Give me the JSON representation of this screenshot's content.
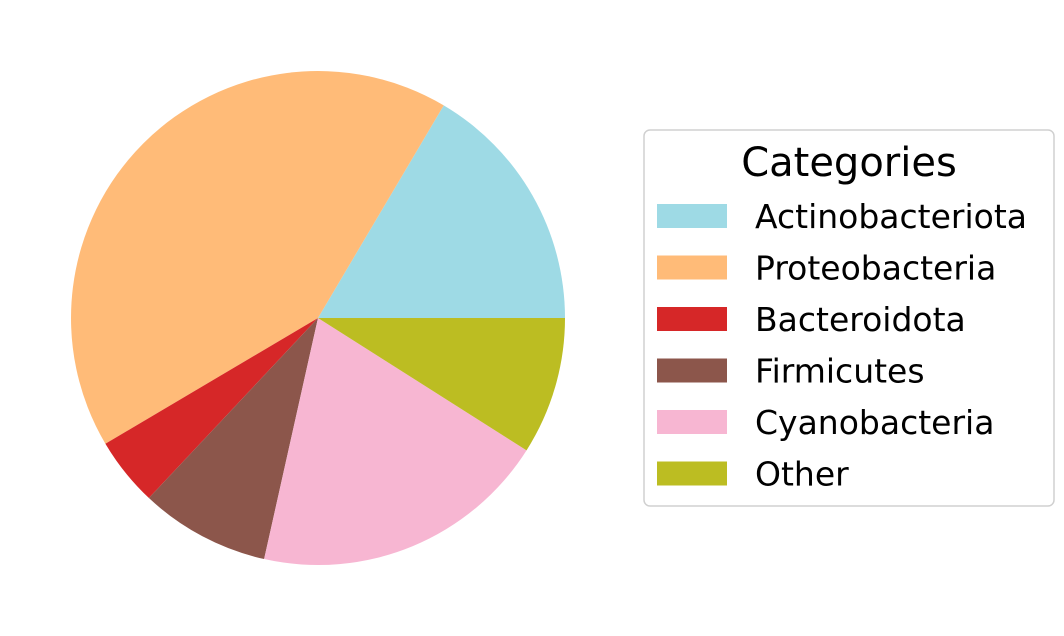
{
  "chart_data": {
    "type": "pie",
    "title": "",
    "legend": {
      "title": "Categories",
      "placement": "right"
    },
    "slices": [
      {
        "label": "Actinobacteriota",
        "value": 16.5,
        "color": "#9edae5"
      },
      {
        "label": "Proteobacteria",
        "value": 42.0,
        "color": "#ffbb78"
      },
      {
        "label": "Bacteroidota",
        "value": 4.5,
        "color": "#d62728"
      },
      {
        "label": "Firmicutes",
        "value": 8.5,
        "color": "#8c564b"
      },
      {
        "label": "Cyanobacteria",
        "value": 19.5,
        "color": "#f7b6d2"
      },
      {
        "label": "Other",
        "value": 9.0,
        "color": "#bcbd22"
      }
    ]
  }
}
